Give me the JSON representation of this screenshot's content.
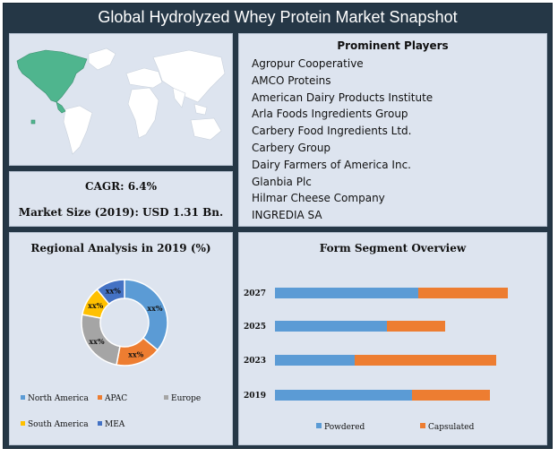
{
  "title": "Global Hydrolyzed Whey Protein Market Snapshot",
  "colors": {
    "frame": "#253746",
    "panel": "#dde4ef",
    "map_highlight": "#4fb58e",
    "map_other": "#ffffff"
  },
  "map": {
    "icon": "world-map",
    "highlighted_region": "North America"
  },
  "players": {
    "heading": "Prominent Players",
    "items": [
      "Agropur Cooperative",
      "AMCO Proteins",
      "American Dairy Products Institute",
      "Arla Foods Ingredients Group",
      "Carbery Food Ingredients Ltd.",
      "Carbery Group",
      "Dairy Farmers of America Inc.",
      "Glanbia Plc",
      "Hilmar Cheese Company",
      "INGREDIA SA"
    ]
  },
  "stats": {
    "cagr": "CAGR: 6.4%",
    "market_size": "Market Size (2019): USD 1.31 Bn."
  },
  "chart_data": [
    {
      "type": "pie",
      "title": "Regional Analysis in 2019 (%)",
      "categories": [
        "North America",
        "APAC",
        "Europe",
        "South America",
        "MEA"
      ],
      "values": [
        36,
        17,
        25,
        11,
        11
      ],
      "data_labels": [
        "xx%",
        "xx%",
        "xx%",
        "xx%",
        "xx%"
      ],
      "colors": [
        "#5b9bd5",
        "#ed7d31",
        "#a5a5a5",
        "#ffc000",
        "#4472c4"
      ],
      "legend": "bottom",
      "donut": true
    },
    {
      "type": "bar",
      "orientation": "horizontal",
      "stacked": true,
      "title": "Form Segment Overview",
      "categories": [
        "2027",
        "2025",
        "2023",
        "2019"
      ],
      "series": [
        {
          "name": "Powdered",
          "color": "#5b9bd5",
          "values": [
            160,
            125,
            89,
            153
          ]
        },
        {
          "name": "Capsulated",
          "color": "#ed7d31",
          "values": [
            100,
            65,
            158,
            87
          ]
        }
      ],
      "xlim": [
        0,
        260
      ],
      "legend": "bottom"
    }
  ]
}
